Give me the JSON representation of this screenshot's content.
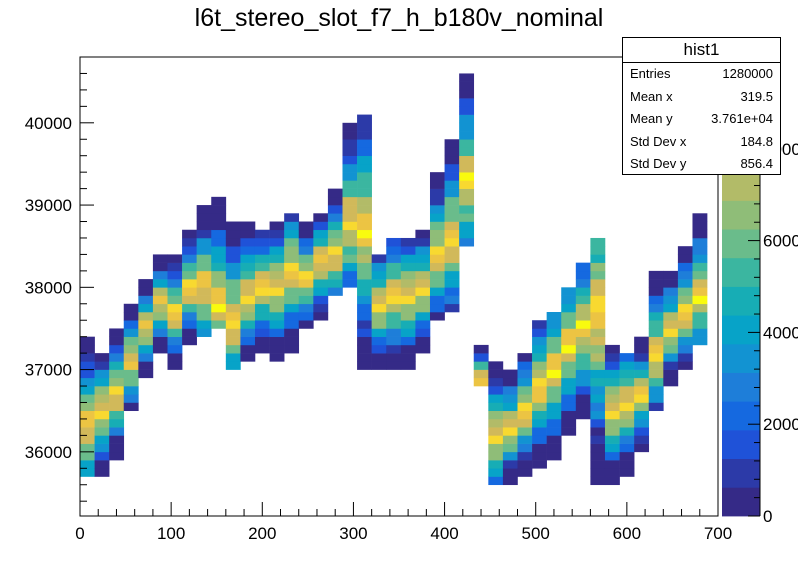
{
  "chart_data": {
    "type": "heatmap",
    "title": "l6t_stereo_slot_f7_h_b180v_nominal",
    "xlabel": "",
    "ylabel": "",
    "xlim": [
      0,
      700
    ],
    "ylim": [
      35220,
      40800
    ],
    "x_ticks": [
      "0",
      "100",
      "200",
      "300",
      "400",
      "500",
      "600",
      "700"
    ],
    "y_ticks": [
      "36000",
      "37000",
      "38000",
      "39000",
      "40000"
    ],
    "z_ticks": [
      "0",
      "2000",
      "4000",
      "6000",
      "8000"
    ],
    "zlim": [
      0,
      10000
    ],
    "bin_width_x": 16,
    "bin_width_y": 100,
    "columns": [
      {
        "x": 8,
        "ylo": 35700,
        "yhi": 37400,
        "peak": 36300
      },
      {
        "x": 24,
        "ylo": 35700,
        "yhi": 37200,
        "peak": 36500
      },
      {
        "x": 40,
        "ylo": 35900,
        "yhi": 37500,
        "peak": 36700
      },
      {
        "x": 56,
        "ylo": 36500,
        "yhi": 37800,
        "peak": 37100
      },
      {
        "x": 72,
        "ylo": 36900,
        "yhi": 38100,
        "peak": 37500
      },
      {
        "x": 88,
        "ylo": 37200,
        "yhi": 38400,
        "peak": 37800
      },
      {
        "x": 104,
        "ylo": 37000,
        "yhi": 38400,
        "peak": 37700
      },
      {
        "x": 120,
        "ylo": 37300,
        "yhi": 38700,
        "peak": 38000
      },
      {
        "x": 136,
        "ylo": 37400,
        "yhi": 39000,
        "peak": 38000
      },
      {
        "x": 152,
        "ylo": 37500,
        "yhi": 39100,
        "peak": 37800
      },
      {
        "x": 168,
        "ylo": 37000,
        "yhi": 38800,
        "peak": 37600
      },
      {
        "x": 184,
        "ylo": 37100,
        "yhi": 38800,
        "peak": 37900
      },
      {
        "x": 200,
        "ylo": 37200,
        "yhi": 38700,
        "peak": 38000
      },
      {
        "x": 216,
        "ylo": 37100,
        "yhi": 38800,
        "peak": 38000
      },
      {
        "x": 232,
        "ylo": 37200,
        "yhi": 38900,
        "peak": 38200
      },
      {
        "x": 248,
        "ylo": 37500,
        "yhi": 38800,
        "peak": 38100
      },
      {
        "x": 264,
        "ylo": 37600,
        "yhi": 38900,
        "peak": 38300
      },
      {
        "x": 280,
        "ylo": 37900,
        "yhi": 39200,
        "peak": 38400
      },
      {
        "x": 296,
        "ylo": 38000,
        "yhi": 40000,
        "peak": 38800
      },
      {
        "x": 312,
        "ylo": 37000,
        "yhi": 40100,
        "peak": 38700
      },
      {
        "x": 328,
        "ylo": 37000,
        "yhi": 38400,
        "peak": 37800
      },
      {
        "x": 344,
        "ylo": 37000,
        "yhi": 38600,
        "peak": 37900
      },
      {
        "x": 360,
        "ylo": 37000,
        "yhi": 38600,
        "peak": 37900
      },
      {
        "x": 376,
        "ylo": 37200,
        "yhi": 38700,
        "peak": 38000
      },
      {
        "x": 392,
        "ylo": 37600,
        "yhi": 39400,
        "peak": 38400
      },
      {
        "x": 408,
        "ylo": 37700,
        "yhi": 39800,
        "peak": 38600
      },
      {
        "x": 424,
        "ylo": 38500,
        "yhi": 40600,
        "peak": 39300
      },
      {
        "x": 440,
        "ylo": 36800,
        "yhi": 37300,
        "peak": 36900
      },
      {
        "x": 456,
        "ylo": 35600,
        "yhi": 37100,
        "peak": 36200
      },
      {
        "x": 472,
        "ylo": 35600,
        "yhi": 37000,
        "peak": 36300
      },
      {
        "x": 488,
        "ylo": 35700,
        "yhi": 37200,
        "peak": 36500
      },
      {
        "x": 504,
        "ylo": 35800,
        "yhi": 37600,
        "peak": 36800
      },
      {
        "x": 520,
        "ylo": 35900,
        "yhi": 37700,
        "peak": 37000
      },
      {
        "x": 536,
        "ylo": 36200,
        "yhi": 38000,
        "peak": 37300
      },
      {
        "x": 552,
        "ylo": 36400,
        "yhi": 38300,
        "peak": 37500
      },
      {
        "x": 568,
        "ylo": 35600,
        "yhi": 38600,
        "peak": 37700
      },
      {
        "x": 584,
        "ylo": 35600,
        "yhi": 37300,
        "peak": 36500
      },
      {
        "x": 600,
        "ylo": 35700,
        "yhi": 37200,
        "peak": 36600
      },
      {
        "x": 616,
        "ylo": 36000,
        "yhi": 37400,
        "peak": 36700
      },
      {
        "x": 632,
        "ylo": 36500,
        "yhi": 38200,
        "peak": 37200
      },
      {
        "x": 648,
        "ylo": 36800,
        "yhi": 38200,
        "peak": 37500
      },
      {
        "x": 664,
        "ylo": 37000,
        "yhi": 38500,
        "peak": 37700
      },
      {
        "x": 680,
        "ylo": 37300,
        "yhi": 38900,
        "peak": 37900
      }
    ],
    "colorscale": [
      "#352a87",
      "#2c3aa8",
      "#1f52d8",
      "#1569e0",
      "#1e7ed9",
      "#1293d2",
      "#07a3c8",
      "#17adb5",
      "#3bb6a0",
      "#6abc8b",
      "#8fbd78",
      "#b2bb68",
      "#d1b95a",
      "#ecc443",
      "#f8d930",
      "#f9fb0e"
    ]
  },
  "stats_box": {
    "name": "hist1",
    "rows": [
      {
        "label": "Entries",
        "value": "1280000"
      },
      {
        "label": "Mean x",
        "value": "319.5"
      },
      {
        "label": "Mean y",
        "value": "3.761e+04"
      },
      {
        "label": "Std Dev x",
        "value": "184.8"
      },
      {
        "label": "Std Dev y",
        "value": "856.4"
      }
    ]
  }
}
